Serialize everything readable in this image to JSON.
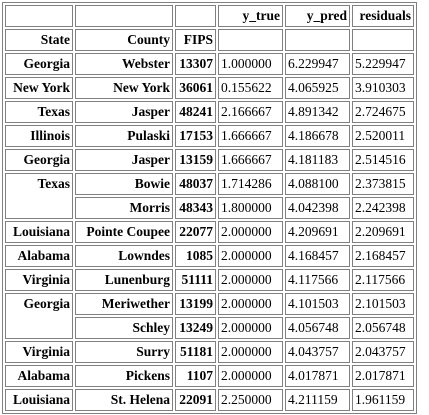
{
  "table": {
    "columns": [
      "y_true",
      "y_pred",
      "residuals"
    ],
    "index_names": [
      "State",
      "County",
      "FIPS"
    ],
    "rows": [
      {
        "state": "Georgia",
        "state_span": 1,
        "county": "Webster",
        "fips": "13307",
        "y_true": "1.000000",
        "y_pred": "6.229947",
        "residuals": "5.229947"
      },
      {
        "state": "New York",
        "state_span": 1,
        "county": "New York",
        "fips": "36061",
        "y_true": "0.155622",
        "y_pred": "4.065925",
        "residuals": "3.910303"
      },
      {
        "state": "Texas",
        "state_span": 1,
        "county": "Jasper",
        "fips": "48241",
        "y_true": "2.166667",
        "y_pred": "4.891342",
        "residuals": "2.724675"
      },
      {
        "state": "Illinois",
        "state_span": 1,
        "county": "Pulaski",
        "fips": "17153",
        "y_true": "1.666667",
        "y_pred": "4.186678",
        "residuals": "2.520011"
      },
      {
        "state": "Georgia",
        "state_span": 1,
        "county": "Jasper",
        "fips": "13159",
        "y_true": "1.666667",
        "y_pred": "4.181183",
        "residuals": "2.514516"
      },
      {
        "state": "Texas",
        "state_span": 2,
        "county": "Bowie",
        "fips": "48037",
        "y_true": "1.714286",
        "y_pred": "4.088100",
        "residuals": "2.373815"
      },
      {
        "state": null,
        "state_span": 0,
        "county": "Morris",
        "fips": "48343",
        "y_true": "1.800000",
        "y_pred": "4.042398",
        "residuals": "2.242398"
      },
      {
        "state": "Louisiana",
        "state_span": 1,
        "county": "Pointe Coupee",
        "fips": "22077",
        "y_true": "2.000000",
        "y_pred": "4.209691",
        "residuals": "2.209691"
      },
      {
        "state": "Alabama",
        "state_span": 1,
        "county": "Lowndes",
        "fips": "1085",
        "y_true": "2.000000",
        "y_pred": "4.168457",
        "residuals": "2.168457"
      },
      {
        "state": "Virginia",
        "state_span": 1,
        "county": "Lunenburg",
        "fips": "51111",
        "y_true": "2.000000",
        "y_pred": "4.117566",
        "residuals": "2.117566"
      },
      {
        "state": "Georgia",
        "state_span": 2,
        "county": "Meriwether",
        "fips": "13199",
        "y_true": "2.000000",
        "y_pred": "4.101503",
        "residuals": "2.101503"
      },
      {
        "state": null,
        "state_span": 0,
        "county": "Schley",
        "fips": "13249",
        "y_true": "2.000000",
        "y_pred": "4.056748",
        "residuals": "2.056748"
      },
      {
        "state": "Virginia",
        "state_span": 1,
        "county": "Surry",
        "fips": "51181",
        "y_true": "2.000000",
        "y_pred": "4.043757",
        "residuals": "2.043757"
      },
      {
        "state": "Alabama",
        "state_span": 1,
        "county": "Pickens",
        "fips": "1107",
        "y_true": "2.000000",
        "y_pred": "4.017871",
        "residuals": "2.017871"
      },
      {
        "state": "Louisiana",
        "state_span": 1,
        "county": "St. Helena",
        "fips": "22091",
        "y_true": "2.250000",
        "y_pred": "4.211159",
        "residuals": "1.961159"
      }
    ]
  }
}
